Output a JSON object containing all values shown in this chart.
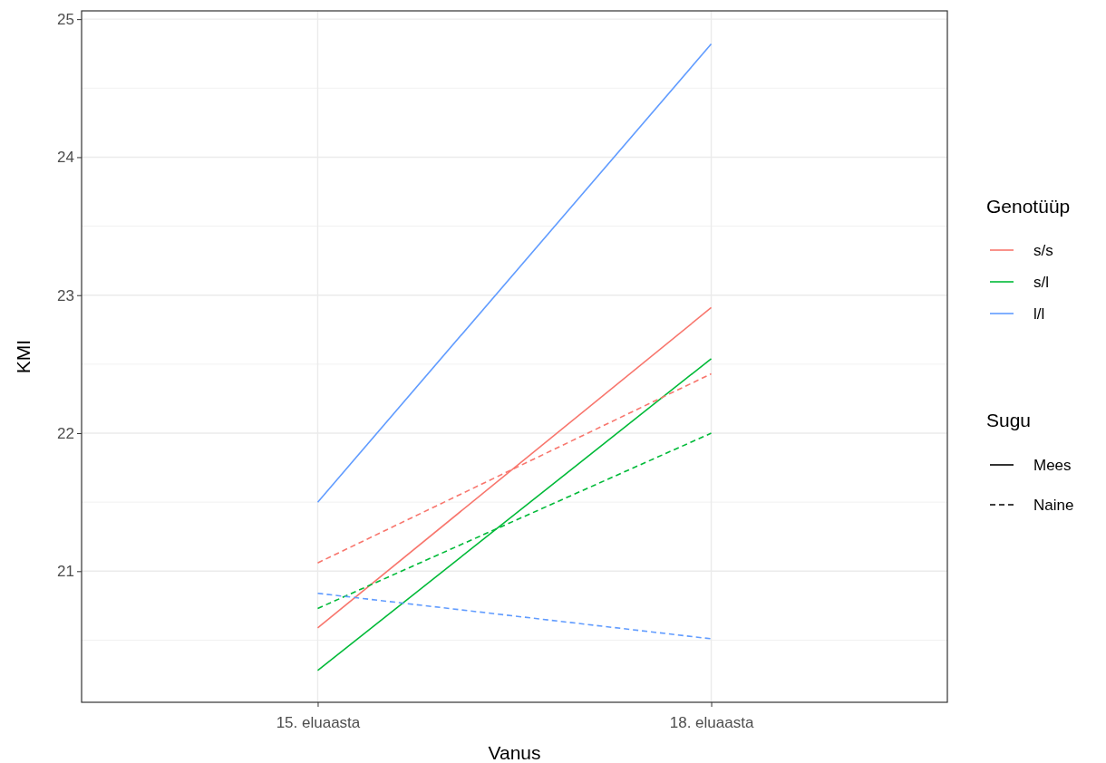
{
  "chart_data": {
    "type": "line",
    "xlabel": "Vanus",
    "ylabel": "KMI",
    "legend_title": "Genotüüp",
    "categories": [
      "15. eluaasta",
      "18. eluaasta"
    ],
    "series": [
      {
        "name": "s/s",
        "color": "#f8766d",
        "line_style": "solid",
        "values": [
          20.59,
          22.91
        ]
      },
      {
        "name": "s/l",
        "color": "#00ba38",
        "line_style": "solid",
        "values": [
          20.28,
          22.54
        ]
      },
      {
        "name": "l/l",
        "color": "#619cff",
        "line_style": "solid",
        "values": [
          21.5,
          24.82
        ]
      },
      {
        "color": "#f8766d",
        "line_style": "dashed",
        "values": [
          21.06,
          22.43
        ]
      },
      {
        "color": "#00ba38",
        "line_style": "dashed",
        "values": [
          20.73,
          22.0
        ]
      },
      {
        "color": "#619cff",
        "line_style": "dashed",
        "values": [
          20.84,
          20.51
        ]
      }
    ],
    "annotations": [
      "Sugu",
      "Mees",
      "Naine"
    ],
    "ylim": [
      20.05,
      25.06
    ],
    "yticks": [
      21,
      22,
      23,
      24,
      25
    ],
    "grid": true,
    "legend": "right",
    "marker": "none"
  }
}
